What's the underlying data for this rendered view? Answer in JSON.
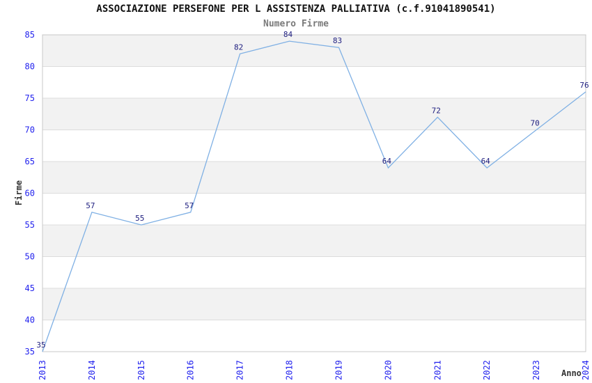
{
  "chart_data": {
    "type": "line",
    "title": "ASSOCIAZIONE PERSEFONE PER L ASSISTENZA PALLIATIVA (c.f.91041890541)",
    "subtitle": "Numero Firme",
    "xlabel": "Anno",
    "ylabel": "Firme",
    "categories": [
      "2013",
      "2014",
      "2015",
      "2016",
      "2017",
      "2018",
      "2019",
      "2020",
      "2021",
      "2022",
      "2023",
      "2024"
    ],
    "values": [
      35,
      57,
      55,
      57,
      82,
      84,
      83,
      64,
      72,
      64,
      70,
      76
    ],
    "ylim": [
      35,
      85
    ],
    "ytick_step": 5,
    "yticks": [
      35,
      40,
      45,
      50,
      55,
      60,
      65,
      70,
      75,
      80,
      85
    ],
    "grid": true,
    "legend": "none",
    "markers": "none",
    "colors": {
      "line": "#7fb0e4",
      "tick_labels": "#2222ee",
      "point_labels": "#202080",
      "title": "#111111",
      "subtitle": "#7a7a7a",
      "axis_titles": "#333333",
      "band_gray": "#f2f2f2",
      "band_white": "#ffffff",
      "gridline": "#dcdcdc",
      "border": "#c8c8c8",
      "background": "#ffffff"
    }
  }
}
